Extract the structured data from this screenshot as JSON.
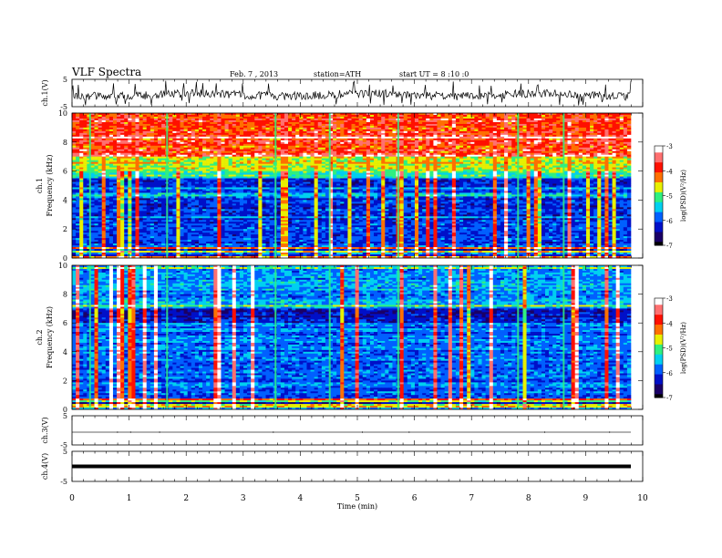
{
  "header": {
    "title": "VLF Spectra",
    "date": "Feb. 7 , 2013",
    "station": "station=ATH",
    "start": "start UT = 8 :10 :0"
  },
  "colors": {
    "colormap": [
      "#000000",
      "#1a0066",
      "#0010c8",
      "#0060ff",
      "#00d0f0",
      "#30f080",
      "#e8f000",
      "#ff7000",
      "#ff1000",
      "#ff7070",
      "#ffffff"
    ]
  },
  "chart_data": [
    {
      "type": "line",
      "ylabel": "ch.1(V)",
      "ylim": [
        -5,
        5
      ],
      "yticks": [
        "5",
        "-5"
      ],
      "x": [
        0,
        9.8
      ],
      "description_level": 1.5
    },
    {
      "type": "heatmap",
      "ylabel": "ch.1\nFrequency (kHz)",
      "ylabel_line1": "ch.1",
      "ylabel_line2": "Frequency (kHz)",
      "ylim": [
        0,
        10
      ],
      "yticks": [
        "0",
        "2",
        "4",
        "6",
        "8",
        "10"
      ],
      "xlim": [
        0,
        9.8
      ],
      "colorbar_label": "log(PSD)(V²/Hz)",
      "colorbar_range": [
        -7,
        -3
      ],
      "colorbar_ticks": [
        "-3",
        "-4",
        "-5",
        "-6",
        "-7"
      ]
    },
    {
      "type": "heatmap",
      "ylabel_line1": "ch.2",
      "ylabel_line2": "Frequency (kHz)",
      "ylim": [
        0,
        10
      ],
      "yticks": [
        "0",
        "2",
        "4",
        "6",
        "8",
        "10"
      ],
      "xlim": [
        0,
        9.8
      ],
      "colorbar_label": "log(PSD)(V²/Hz)",
      "colorbar_range": [
        -7,
        -3
      ],
      "colorbar_ticks": [
        "-3",
        "-4",
        "-5",
        "-6",
        "-7"
      ]
    },
    {
      "type": "line",
      "ylabel": "ch.3(V)",
      "ylim": [
        -5,
        5
      ],
      "yticks": [
        "5",
        "-5"
      ],
      "value": 0
    },
    {
      "type": "line",
      "ylabel": "ch.4(V)",
      "ylim": [
        -5,
        5
      ],
      "yticks": [
        "5",
        "-5"
      ],
      "value": 0
    }
  ],
  "xaxis": {
    "label": "Time (min)",
    "xlim": [
      0,
      10
    ],
    "ticks": [
      "0",
      "1",
      "2",
      "3",
      "4",
      "5",
      "6",
      "7",
      "8",
      "9",
      "10"
    ]
  }
}
